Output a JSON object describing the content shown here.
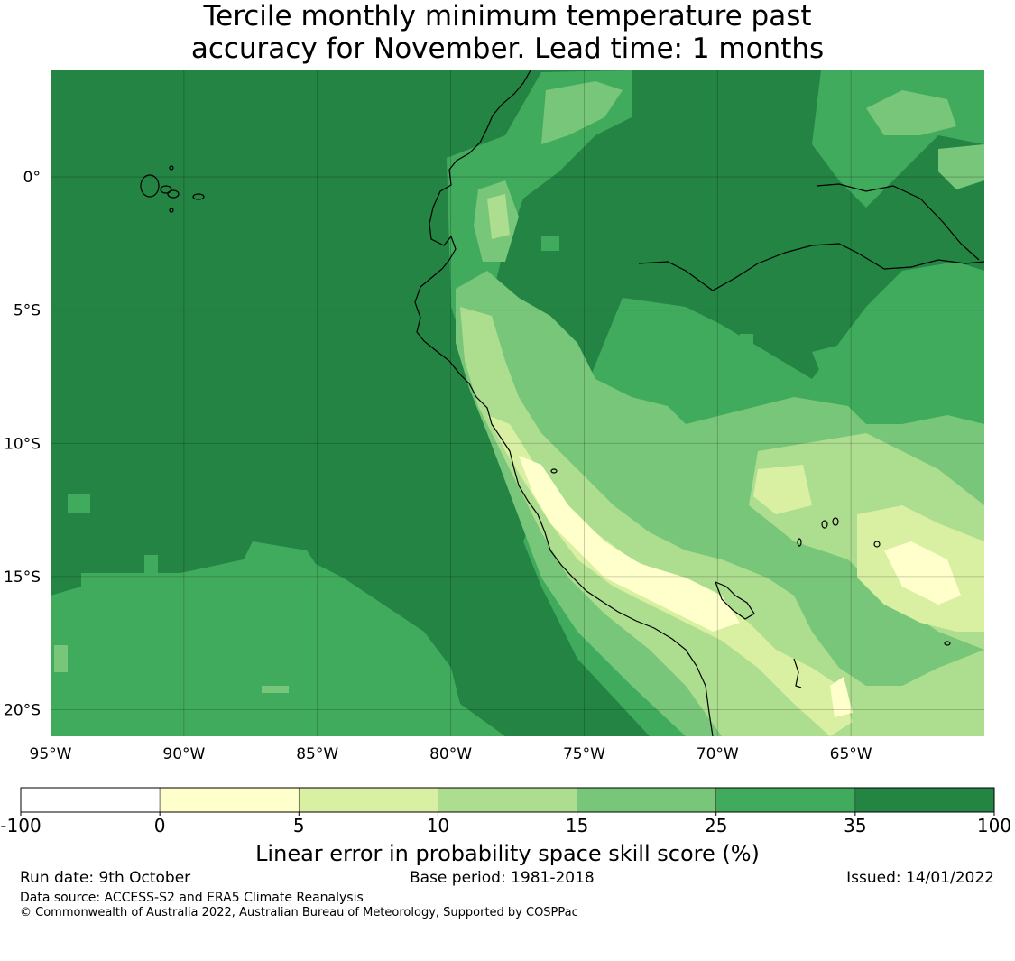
{
  "title": {
    "line1": "Tercile monthly minimum temperature past",
    "line2": "accuracy for November. Lead time: 1 months"
  },
  "map": {
    "region": "western South America / eastern Pacific",
    "lon_range": [
      -95,
      -60
    ],
    "lat_range": [
      -21,
      4
    ],
    "lon_ticks": [
      {
        "value": -95,
        "label": "95°W"
      },
      {
        "value": -90,
        "label": "90°W"
      },
      {
        "value": -85,
        "label": "85°W"
      },
      {
        "value": -80,
        "label": "80°W"
      },
      {
        "value": -75,
        "label": "75°W"
      },
      {
        "value": -70,
        "label": "70°W"
      },
      {
        "value": -65,
        "label": "65°W"
      }
    ],
    "lat_ticks": [
      {
        "value": 0,
        "label": "0°"
      },
      {
        "value": -5,
        "label": "5°S"
      },
      {
        "value": -10,
        "label": "10°S"
      },
      {
        "value": -15,
        "label": "15°S"
      },
      {
        "value": -20,
        "label": "20°S"
      }
    ],
    "gridlines": true
  },
  "colorbar": {
    "label": "Linear error in probability space skill score (%)",
    "boundaries": [
      "-100",
      "0",
      "5",
      "10",
      "15",
      "25",
      "35",
      "100"
    ],
    "colors": [
      "#ffffff",
      "#ffffcc",
      "#d9f0a3",
      "#addd8e",
      "#78c679",
      "#41ab5d",
      "#238443"
    ]
  },
  "footer": {
    "run_date": "Run date: 9th October",
    "base_period": "Base period: 1981-2018",
    "issued": "Issued: 14/01/2022",
    "data_source": "Data source: ACCESS-S2 and ERA5 Climate Reanalysis",
    "copyright": "© Commonwealth of Australia 2022, Australian Bureau of Meteorology, Supported by COSPPac"
  }
}
